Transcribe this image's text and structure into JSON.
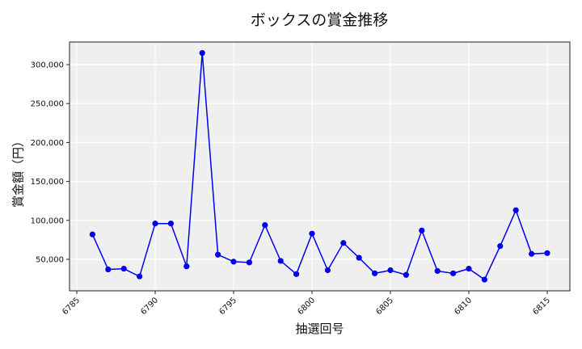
{
  "chart_data": {
    "type": "line",
    "title": "ボックスの賞金推移",
    "xlabel": "抽選回号",
    "ylabel": "賞金額（円）",
    "x": [
      6786,
      6787,
      6788,
      6789,
      6790,
      6791,
      6792,
      6793,
      6794,
      6795,
      6796,
      6797,
      6798,
      6799,
      6800,
      6801,
      6802,
      6803,
      6804,
      6805,
      6806,
      6807,
      6808,
      6809,
      6810,
      6811,
      6812,
      6813,
      6814,
      6815
    ],
    "series": [
      {
        "name": "ボックス",
        "color": "#0000ee",
        "values": [
          82000,
          37000,
          38000,
          28000,
          96000,
          96000,
          41000,
          315000,
          56000,
          47000,
          46000,
          94000,
          48000,
          31000,
          83000,
          36000,
          71000,
          52000,
          32000,
          36000,
          30000,
          87000,
          35000,
          32000,
          38000,
          24000,
          67000,
          113000,
          57000,
          58000
        ]
      }
    ],
    "xticks": [
      6785,
      6790,
      6795,
      6800,
      6805,
      6810,
      6815
    ],
    "yticks": [
      50000,
      100000,
      150000,
      200000,
      250000,
      300000
    ],
    "ytick_labels": [
      "50,000",
      "100,000",
      "150,000",
      "200,000",
      "250,000",
      "300,000"
    ],
    "xlim": [
      6784.5,
      6816.5
    ],
    "ylim": [
      10000,
      330000
    ],
    "grid": true,
    "legend": null,
    "background": "#efefef"
  }
}
